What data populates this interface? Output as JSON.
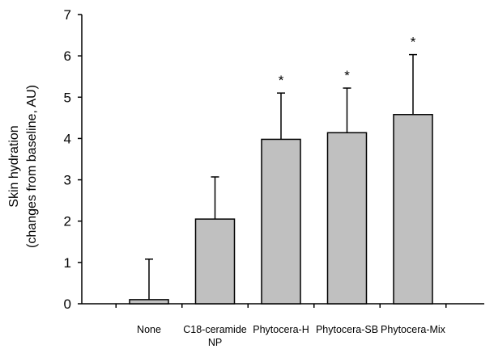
{
  "chart_data": {
    "type": "bar",
    "title": "",
    "xlabel": "",
    "ylabel_lines": [
      "Skin hydration",
      "(changes from baseline, AU)"
    ],
    "ylim": [
      0,
      7
    ],
    "yticks": [
      0,
      1,
      2,
      3,
      4,
      5,
      6,
      7
    ],
    "grid": false,
    "categories": [
      {
        "lines": [
          "None"
        ]
      },
      {
        "lines": [
          "C18-ceramide",
          "NP"
        ]
      },
      {
        "lines": [
          "Phytocera-H"
        ]
      },
      {
        "lines": [
          "Phytocera-SB"
        ]
      },
      {
        "lines": [
          "Phytocera-Mix"
        ]
      }
    ],
    "values": [
      0.1,
      2.05,
      3.98,
      4.14,
      4.58
    ],
    "error_upper": [
      0.98,
      1.02,
      1.12,
      1.08,
      1.45
    ],
    "significance": [
      "",
      "",
      "*",
      "*",
      "*"
    ],
    "bar_color": "#c0c0c0",
    "bar_edge_color": "#000000"
  }
}
